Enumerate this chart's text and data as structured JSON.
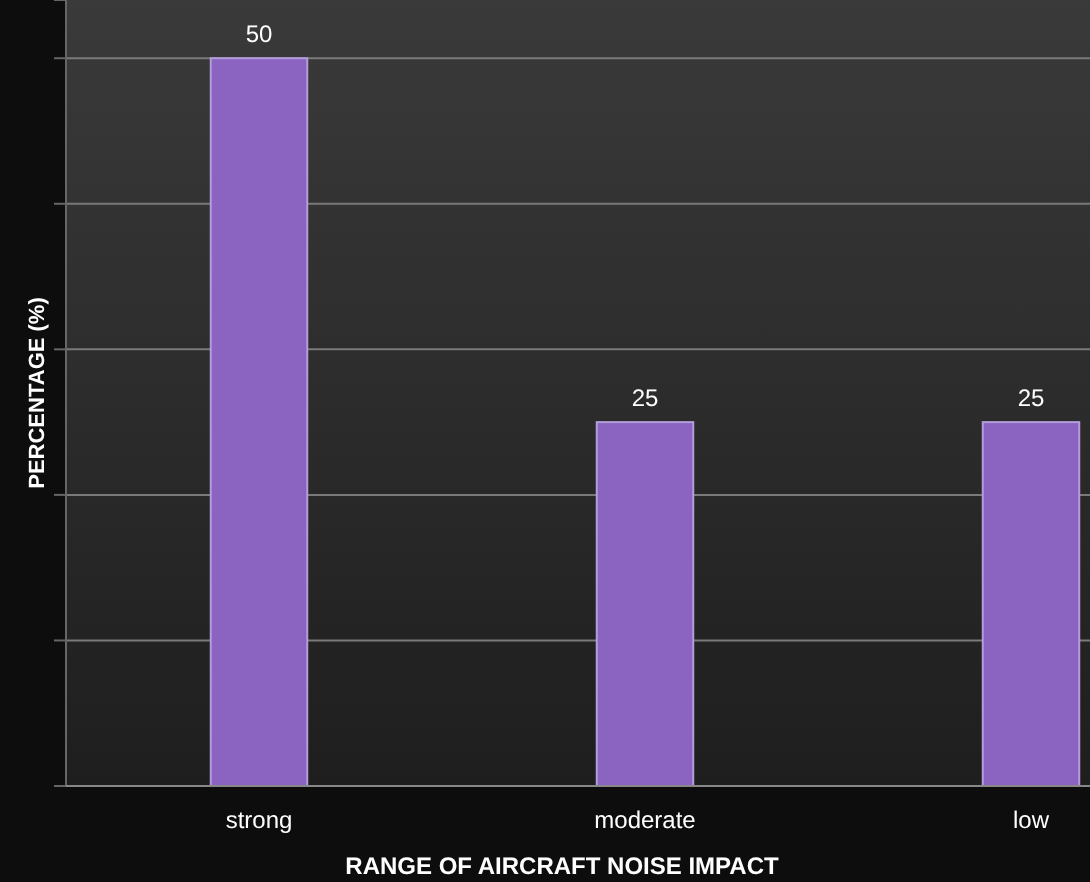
{
  "chart_data": {
    "type": "bar",
    "xlabel": "RANGE OF AIRCRAFT NOISE IMPACT",
    "ylabel": "PERCENTAGE (%)",
    "categories": [
      "strong",
      "moderate",
      "low"
    ],
    "values": [
      50,
      25,
      25
    ],
    "color": "#8a64c0",
    "data_labels": true,
    "ylim": [
      0,
      54
    ],
    "yticks": [
      {
        "value": 0,
        "label": null
      },
      {
        "value": 10,
        "label": null
      },
      {
        "value": 20,
        "label": null
      },
      {
        "value": 30,
        "label": null
      },
      {
        "value": 40,
        "label": null
      },
      {
        "value": 50,
        "label": null
      }
    ],
    "tick_labels": "x",
    "grid": "y"
  }
}
